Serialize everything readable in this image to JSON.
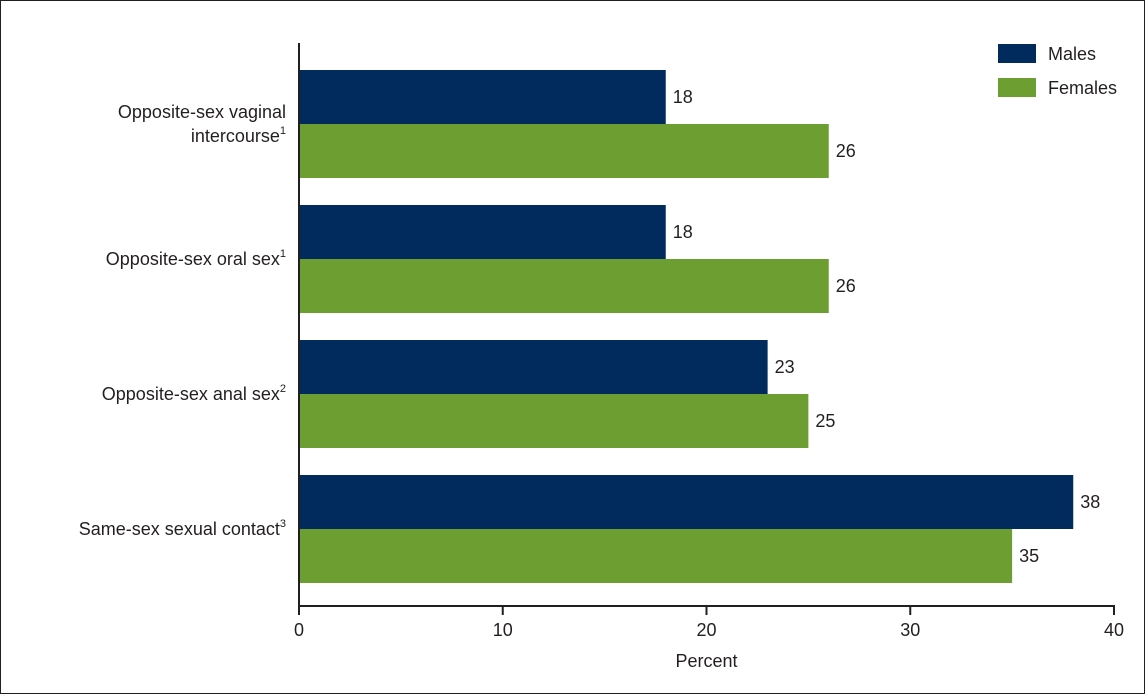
{
  "chart_data": {
    "type": "bar",
    "orientation": "horizontal",
    "categories": [
      {
        "label_lines": [
          "Opposite-sex vaginal",
          "intercourse"
        ],
        "sup": "1"
      },
      {
        "label_lines": [
          "Opposite-sex oral sex"
        ],
        "sup": "1"
      },
      {
        "label_lines": [
          "Opposite-sex anal sex"
        ],
        "sup": "2"
      },
      {
        "label_lines": [
          "Same-sex sexual contact"
        ],
        "sup": "3"
      }
    ],
    "series": [
      {
        "name": "Males",
        "color": "#002b5c",
        "values": [
          18,
          18,
          23,
          38
        ]
      },
      {
        "name": "Females",
        "color": "#6d9e31",
        "values": [
          26,
          26,
          25,
          35
        ]
      }
    ],
    "xlabel": "Percent",
    "xlim": [
      0,
      40
    ],
    "xticks": [
      0,
      10,
      20,
      30,
      40
    ],
    "grid": false,
    "legend_position": "top-right"
  }
}
